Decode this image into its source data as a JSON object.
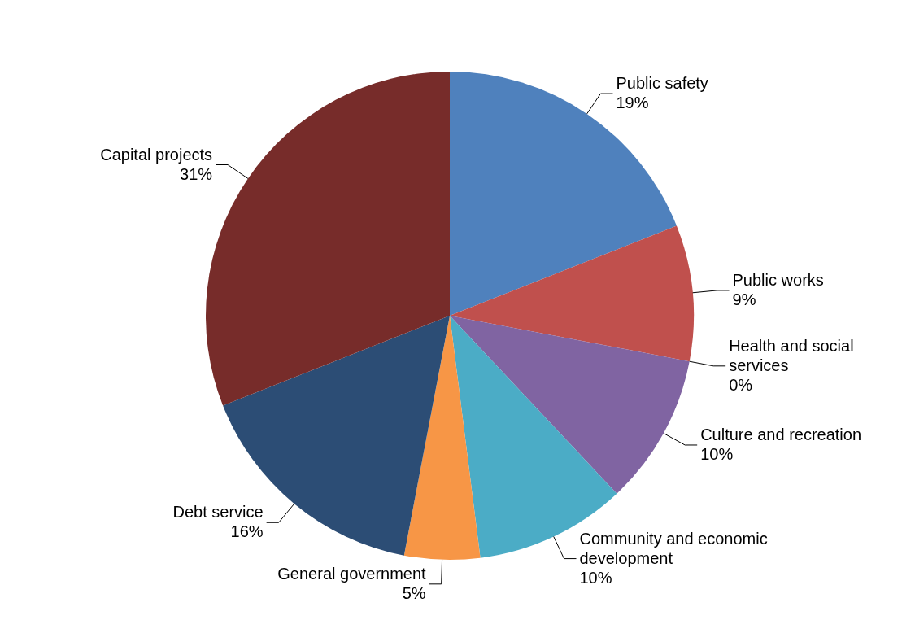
{
  "chart_data": {
    "type": "pie",
    "categories": [
      "Public safety",
      "Public works",
      "Health and social services",
      "Culture and recreation",
      "Community and economic development",
      "General government",
      "Debt service",
      "Capital projects"
    ],
    "values": [
      19,
      9,
      0,
      10,
      10,
      5,
      16,
      31
    ],
    "value_labels": [
      "19%",
      "9%",
      "0%",
      "10%",
      "10%",
      "5%",
      "16%",
      "31%"
    ],
    "colors": [
      "#4f81bd",
      "#c0504d",
      "#9bbb59",
      "#8064a2",
      "#4bacc6",
      "#f79646",
      "#2c4d75",
      "#772c2a"
    ]
  }
}
